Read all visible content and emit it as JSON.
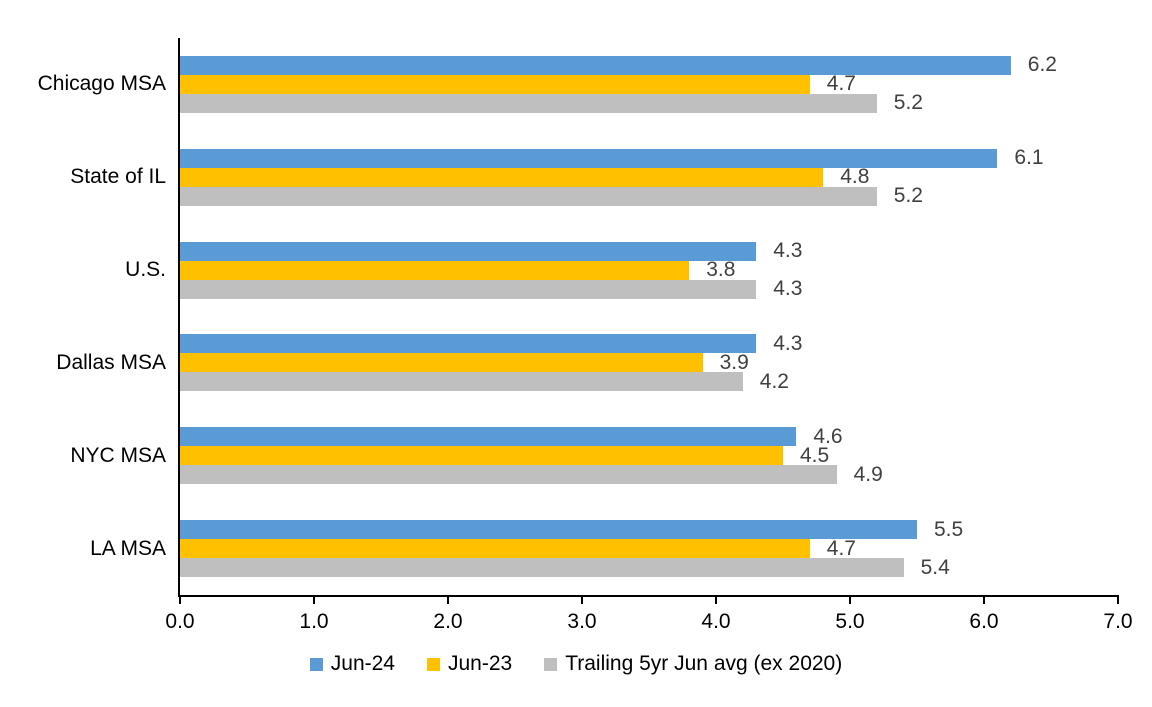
{
  "chart_data": {
    "type": "bar",
    "orientation": "horizontal",
    "title": "",
    "categories": [
      "Chicago MSA",
      "State of IL",
      "U.S.",
      "Dallas MSA",
      "NYC MSA",
      "LA MSA"
    ],
    "series": [
      {
        "name": "Jun-24",
        "color": "#5B9BD5",
        "values": [
          6.2,
          6.1,
          4.3,
          4.3,
          4.6,
          5.5
        ]
      },
      {
        "name": "Jun-23",
        "color": "#FFC000",
        "values": [
          4.7,
          4.8,
          3.8,
          3.9,
          4.5,
          4.7
        ]
      },
      {
        "name": "Trailing 5yr Jun avg (ex 2020)",
        "color": "#BFBFBF",
        "values": [
          5.2,
          5.2,
          4.3,
          4.2,
          4.9,
          5.4
        ]
      }
    ],
    "xlim": [
      0,
      7
    ],
    "x_ticks": [
      "0.0",
      "1.0",
      "2.0",
      "3.0",
      "4.0",
      "5.0",
      "6.0",
      "7.0"
    ],
    "data_labels": true,
    "data_label_format": "0.1f",
    "grid": false,
    "legend_position": "bottom",
    "colors": {
      "axis": "#000000",
      "category_text": "#000000",
      "tick_text": "#000000",
      "value_label_text": "#404040",
      "background": "#ffffff"
    }
  }
}
